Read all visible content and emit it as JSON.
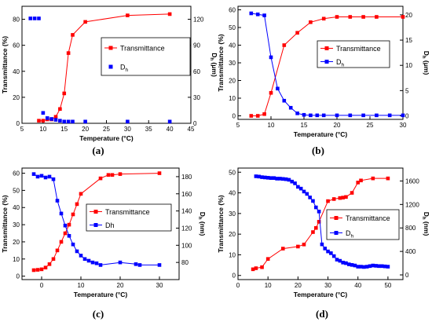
{
  "colors": {
    "transmittance": "#ff0000",
    "dh": "#0000ff",
    "axis": "#000000"
  },
  "chart_data": [
    {
      "type": "line",
      "panel_label": "(a)",
      "xlabel": "Temperature (°C)",
      "ylabel_left": "Transmittance (%)",
      "ylabel_right": "D",
      "ylabel_right_sub": "h",
      "ylabel_right_unit": " (μm)",
      "xlim": [
        5,
        45
      ],
      "ylim_left": [
        0,
        90
      ],
      "ylim_right": [
        0,
        135
      ],
      "xticks": [
        5,
        10,
        15,
        20,
        25,
        30,
        35,
        40,
        45
      ],
      "yticks_left": [
        0,
        20,
        40,
        60,
        80
      ],
      "yticks_right": [
        0,
        30,
        60,
        90,
        120
      ],
      "legend_position": "right",
      "series": [
        {
          "name": "Transmittance",
          "axis": "left",
          "marker": "square-filled",
          "color": "#ff0000",
          "x": [
            9,
            10,
            11,
            12,
            13,
            14,
            15,
            16,
            17,
            20,
            30,
            40
          ],
          "y": [
            2,
            2,
            3,
            3,
            5,
            11,
            23,
            54,
            68,
            78,
            83,
            84
          ]
        },
        {
          "name": "D",
          "name_sub": "h",
          "axis": "right",
          "marker": "square-filled",
          "color": "#0000ff",
          "lines": false,
          "x": [
            7,
            8,
            9,
            10,
            11,
            12,
            13,
            14,
            15,
            16,
            17,
            20,
            30,
            40
          ],
          "y": [
            121,
            121,
            121,
            12,
            6,
            5,
            4,
            3,
            2,
            2,
            2,
            2,
            2,
            2
          ]
        }
      ]
    },
    {
      "type": "line",
      "panel_label": "(b)",
      "xlabel": "Temperature (°C)",
      "ylabel_left": "Transmittance (%)",
      "ylabel_right": "D",
      "ylabel_right_sub": "h",
      "ylabel_right_unit": " (μm)",
      "xlim": [
        5,
        30
      ],
      "ylim_left": [
        -2,
        62
      ],
      "ylim_right": [
        -0.7,
        21.7
      ],
      "xticks": [
        5,
        10,
        15,
        20,
        25,
        30
      ],
      "yticks_left": [
        0,
        10,
        20,
        30,
        40,
        50,
        60
      ],
      "yticks_right": [
        0,
        5,
        10,
        15,
        20
      ],
      "legend_position": "right",
      "series": [
        {
          "name": "Transmittance",
          "axis": "left",
          "marker": "square-filled",
          "color": "#ff0000",
          "x": [
            7,
            8,
            9,
            10,
            12,
            14,
            16,
            18,
            20,
            22,
            24,
            26,
            30
          ],
          "y": [
            0,
            0,
            1,
            13,
            40,
            47,
            53,
            55,
            56,
            56,
            56,
            56,
            56
          ]
        },
        {
          "name": "D",
          "name_sub": "h",
          "axis": "right",
          "marker": "square-filled",
          "color": "#0000ff",
          "x": [
            7,
            8,
            9,
            10,
            11,
            12,
            13,
            14,
            15,
            16,
            17,
            18,
            20,
            22,
            24,
            26,
            28,
            30
          ],
          "y": [
            20.3,
            20.1,
            19.9,
            11.6,
            5.4,
            3.0,
            1.6,
            0.5,
            0.2,
            0.1,
            0.1,
            0.1,
            0.1,
            0.1,
            0.1,
            0.1,
            0.1,
            0.1
          ]
        }
      ]
    },
    {
      "type": "line",
      "panel_label": "(c)",
      "xlabel": "Temperature (°C)",
      "ylabel_left": "Transmittance (%)",
      "ylabel_right": "D",
      "ylabel_right_sub": "h",
      "ylabel_right_unit": " (nm)",
      "xlim": [
        -5,
        35
      ],
      "ylim_left": [
        -2,
        63
      ],
      "ylim_right": [
        60,
        190
      ],
      "xticks": [
        0,
        10,
        20,
        30
      ],
      "yticks_left": [
        0,
        10,
        20,
        30,
        40,
        50,
        60
      ],
      "yticks_right": [
        80,
        100,
        120,
        140,
        160,
        180
      ],
      "legend_position": "right",
      "series": [
        {
          "name": "Transmittance",
          "axis": "left",
          "marker": "square-filled",
          "color": "#ff0000",
          "x": [
            -2,
            -1,
            0,
            1,
            2,
            3,
            4,
            5,
            6,
            7,
            8,
            9,
            10,
            15,
            17,
            18,
            20,
            30
          ],
          "y": [
            3.5,
            3.7,
            4,
            5,
            7,
            10,
            15,
            20,
            25,
            30,
            36,
            42,
            48,
            57,
            59,
            59,
            59.5,
            60
          ]
        },
        {
          "name": "Dh",
          "axis": "right",
          "marker": "square-filled",
          "color": "#0000ff",
          "x": [
            -2,
            -1,
            0,
            1,
            2,
            3,
            4,
            5,
            6,
            7,
            8,
            9,
            10,
            11,
            12,
            13,
            14,
            15,
            20,
            24,
            25,
            30
          ],
          "y": [
            183,
            180,
            181,
            179,
            180,
            177,
            152,
            137,
            123,
            111,
            101,
            93,
            88,
            84,
            82,
            80,
            79,
            77,
            80,
            78,
            77,
            77
          ]
        }
      ]
    },
    {
      "type": "line",
      "panel_label": "(d)",
      "xlabel": "Temperature (°C)",
      "ylabel_left": "Transmittance (%)",
      "ylabel_right": "D",
      "ylabel_right_sub": "h",
      "ylabel_right_unit": " (nm)",
      "xlim": [
        0,
        55
      ],
      "ylim_left": [
        -2,
        52
      ],
      "ylim_right": [
        -80,
        1820
      ],
      "xticks": [
        0,
        10,
        20,
        30,
        40,
        50
      ],
      "yticks_left": [
        0,
        10,
        20,
        30,
        40,
        50
      ],
      "yticks_right": [
        0,
        400,
        800,
        1200,
        1600
      ],
      "legend_position": "right",
      "series": [
        {
          "name": "Transmittance",
          "axis": "left",
          "marker": "square-filled",
          "color": "#ff0000",
          "x": [
            5,
            6,
            8,
            10,
            15,
            20,
            22,
            25,
            26,
            27,
            30,
            32,
            34,
            35,
            36,
            38,
            40,
            41,
            45,
            50
          ],
          "y": [
            3,
            3.5,
            4,
            8,
            13,
            14,
            15,
            21,
            23,
            26,
            36,
            37,
            37.5,
            37.7,
            38,
            40,
            45,
            46,
            47,
            47
          ]
        },
        {
          "name": "D",
          "name_sub": "h",
          "axis": "right",
          "marker": "square-filled",
          "color": "#0000ff",
          "x": [
            6,
            7,
            8,
            9,
            10,
            11,
            12,
            13,
            14,
            15,
            16,
            17,
            18,
            19,
            20,
            21,
            22,
            23,
            24,
            25,
            26,
            27,
            28,
            29,
            30,
            31,
            32,
            33,
            34,
            35,
            36,
            37,
            38,
            39,
            40,
            41,
            42,
            43,
            44,
            45,
            46,
            47,
            48,
            49,
            50
          ],
          "y": [
            1680,
            1675,
            1665,
            1660,
            1655,
            1650,
            1650,
            1640,
            1640,
            1635,
            1630,
            1620,
            1590,
            1560,
            1500,
            1470,
            1420,
            1380,
            1320,
            1260,
            1150,
            1080,
            520,
            450,
            400,
            370,
            320,
            260,
            240,
            210,
            200,
            180,
            170,
            160,
            140,
            140,
            135,
            140,
            150,
            160,
            155,
            150,
            150,
            145,
            140
          ]
        }
      ]
    }
  ]
}
